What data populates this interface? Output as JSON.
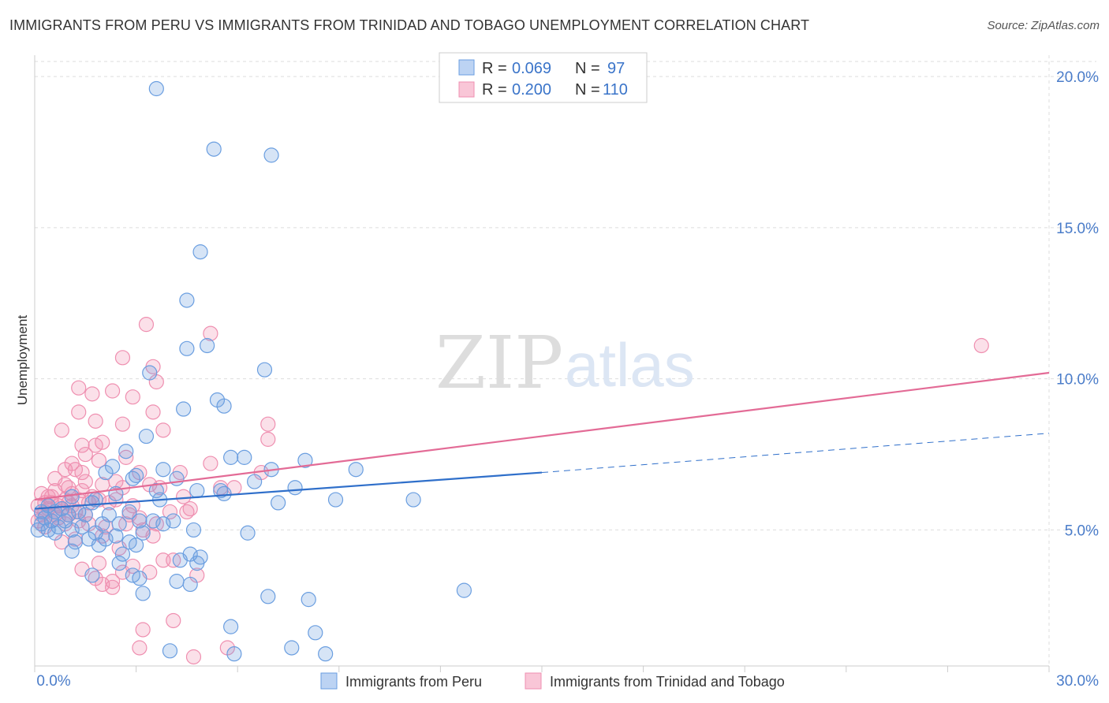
{
  "title": "IMMIGRANTS FROM PERU VS IMMIGRANTS FROM TRINIDAD AND TOBAGO UNEMPLOYMENT CORRELATION CHART",
  "source": "Source: ZipAtlas.com",
  "watermark": {
    "part1": "ZIP",
    "part2": "atlas"
  },
  "legend": {
    "rows": [
      {
        "r_label": "R =",
        "r_value": "0.069",
        "n_label": "N =",
        "n_value": "97"
      },
      {
        "r_label": "R =",
        "r_value": "0.200",
        "n_label": "N =",
        "n_value": "110"
      }
    ]
  },
  "bottom_legend": [
    "Immigrants from Peru",
    "Immigrants from Trinidad and Tobago"
  ],
  "colors": {
    "peru": "#6a9ee0",
    "peru_line": "#2f6fca",
    "tt": "#ef8fb0",
    "tt_line": "#e36b96",
    "grid": "#dddddd",
    "tick_text": "#4a7cc9"
  },
  "chart_data": {
    "type": "scatter",
    "xlabel": "",
    "ylabel": "Unemployment",
    "xlim": [
      0,
      30
    ],
    "ylim": [
      0.5,
      20.5
    ],
    "x_tick_labels": [
      "0.0%",
      "30.0%"
    ],
    "y_ticks": [
      5,
      10,
      15,
      20
    ],
    "y_tick_labels": [
      "5.0%",
      "10.0%",
      "15.0%",
      "20.0%"
    ],
    "grid": true,
    "legend_placement": "top-center",
    "series": [
      {
        "name": "Immigrants from Peru",
        "r": 0.069,
        "n": 97,
        "trend": {
          "x0": 0,
          "y0": 5.7,
          "x1": 15.0,
          "y1": 6.9,
          "dashed_to_x": 30,
          "dashed_to_y": 8.2
        },
        "points": [
          [
            3.6,
            19.6
          ],
          [
            5.3,
            17.6
          ],
          [
            7.0,
            17.4
          ],
          [
            4.9,
            14.2
          ],
          [
            4.5,
            12.6
          ],
          [
            4.5,
            11.0
          ],
          [
            5.1,
            11.1
          ],
          [
            6.8,
            10.3
          ],
          [
            3.4,
            10.2
          ],
          [
            5.4,
            9.3
          ],
          [
            5.6,
            9.1
          ],
          [
            4.4,
            9.0
          ],
          [
            3.3,
            8.1
          ],
          [
            2.7,
            7.6
          ],
          [
            5.8,
            7.4
          ],
          [
            6.2,
            7.4
          ],
          [
            8.0,
            7.3
          ],
          [
            2.3,
            7.1
          ],
          [
            3.8,
            7.0
          ],
          [
            7.0,
            7.0
          ],
          [
            9.5,
            7.0
          ],
          [
            2.1,
            6.9
          ],
          [
            3.0,
            6.8
          ],
          [
            4.2,
            6.7
          ],
          [
            2.9,
            6.7
          ],
          [
            6.5,
            6.6
          ],
          [
            7.7,
            6.4
          ],
          [
            3.6,
            6.3
          ],
          [
            4.8,
            6.3
          ],
          [
            5.5,
            6.3
          ],
          [
            2.4,
            6.2
          ],
          [
            1.1,
            6.1
          ],
          [
            1.8,
            6.0
          ],
          [
            7.2,
            5.9
          ],
          [
            8.9,
            6.0
          ],
          [
            11.2,
            6.0
          ],
          [
            0.4,
            5.8
          ],
          [
            0.8,
            5.7
          ],
          [
            1.3,
            5.6
          ],
          [
            0.6,
            5.6
          ],
          [
            0.2,
            5.6
          ],
          [
            0.3,
            5.4
          ],
          [
            1.0,
            5.5
          ],
          [
            1.5,
            5.5
          ],
          [
            2.8,
            5.6
          ],
          [
            0.5,
            5.3
          ],
          [
            0.9,
            5.3
          ],
          [
            0.2,
            5.2
          ],
          [
            0.7,
            5.1
          ],
          [
            1.4,
            5.1
          ],
          [
            2.0,
            5.2
          ],
          [
            3.1,
            5.3
          ],
          [
            3.5,
            5.3
          ],
          [
            3.8,
            5.2
          ],
          [
            4.1,
            5.3
          ],
          [
            2.5,
            5.2
          ],
          [
            0.4,
            5.0
          ],
          [
            1.1,
            5.0
          ],
          [
            1.8,
            4.9
          ],
          [
            2.4,
            4.8
          ],
          [
            3.2,
            4.9
          ],
          [
            4.7,
            5.0
          ],
          [
            6.3,
            4.9
          ],
          [
            0.1,
            5.0
          ],
          [
            0.6,
            4.9
          ],
          [
            1.6,
            4.7
          ],
          [
            2.1,
            4.7
          ],
          [
            1.2,
            4.6
          ],
          [
            2.8,
            4.6
          ],
          [
            1.9,
            4.5
          ],
          [
            3.0,
            4.5
          ],
          [
            1.1,
            4.3
          ],
          [
            2.6,
            4.2
          ],
          [
            4.6,
            4.2
          ],
          [
            4.9,
            4.1
          ],
          [
            4.3,
            4.0
          ],
          [
            2.5,
            3.9
          ],
          [
            4.8,
            3.9
          ],
          [
            1.7,
            3.5
          ],
          [
            2.9,
            3.5
          ],
          [
            3.1,
            3.4
          ],
          [
            4.2,
            3.3
          ],
          [
            4.6,
            3.2
          ],
          [
            12.7,
            3.0
          ],
          [
            3.2,
            2.9
          ],
          [
            6.9,
            2.8
          ],
          [
            8.1,
            2.7
          ],
          [
            5.8,
            1.8
          ],
          [
            8.3,
            1.6
          ],
          [
            7.6,
            1.1
          ],
          [
            4.0,
            1.0
          ],
          [
            5.9,
            0.9
          ],
          [
            8.6,
            0.9
          ],
          [
            1.7,
            5.9
          ],
          [
            2.2,
            5.5
          ],
          [
            3.7,
            6.0
          ],
          [
            5.6,
            6.2
          ]
        ]
      },
      {
        "name": "Immigrants from Trinidad and Tobago",
        "r": 0.2,
        "n": 110,
        "trend": {
          "x0": 0,
          "y0": 6.0,
          "x1": 30,
          "y1": 10.2
        },
        "points": [
          [
            28.0,
            11.1
          ],
          [
            3.3,
            11.8
          ],
          [
            5.2,
            11.5
          ],
          [
            2.6,
            10.7
          ],
          [
            3.5,
            10.4
          ],
          [
            3.6,
            9.9
          ],
          [
            1.3,
            9.7
          ],
          [
            2.3,
            9.6
          ],
          [
            1.7,
            9.5
          ],
          [
            2.9,
            9.4
          ],
          [
            3.5,
            8.9
          ],
          [
            1.3,
            8.9
          ],
          [
            1.8,
            8.6
          ],
          [
            2.6,
            8.5
          ],
          [
            6.9,
            8.5
          ],
          [
            0.8,
            8.3
          ],
          [
            3.8,
            8.3
          ],
          [
            1.4,
            7.8
          ],
          [
            2.0,
            7.9
          ],
          [
            1.8,
            7.8
          ],
          [
            6.9,
            8.0
          ],
          [
            1.5,
            7.5
          ],
          [
            2.7,
            7.4
          ],
          [
            1.9,
            7.3
          ],
          [
            1.1,
            7.2
          ],
          [
            5.2,
            7.2
          ],
          [
            0.9,
            7.0
          ],
          [
            1.2,
            7.0
          ],
          [
            3.1,
            6.9
          ],
          [
            4.3,
            6.9
          ],
          [
            6.7,
            6.9
          ],
          [
            0.6,
            6.7
          ],
          [
            1.5,
            6.6
          ],
          [
            2.0,
            6.5
          ],
          [
            3.4,
            6.5
          ],
          [
            5.5,
            6.4
          ],
          [
            2.6,
            6.4
          ],
          [
            1.0,
            6.4
          ],
          [
            1.4,
            6.3
          ],
          [
            0.2,
            6.2
          ],
          [
            0.5,
            6.1
          ],
          [
            0.9,
            6.0
          ],
          [
            1.3,
            6.0
          ],
          [
            1.9,
            6.0
          ],
          [
            2.4,
            6.0
          ],
          [
            1.6,
            5.9
          ],
          [
            0.3,
            5.9
          ],
          [
            0.7,
            5.8
          ],
          [
            1.1,
            5.8
          ],
          [
            0.1,
            5.8
          ],
          [
            0.4,
            5.7
          ],
          [
            0.8,
            5.7
          ],
          [
            1.2,
            5.6
          ],
          [
            4.6,
            5.7
          ],
          [
            0.2,
            5.5
          ],
          [
            0.6,
            5.5
          ],
          [
            1.0,
            5.5
          ],
          [
            1.5,
            5.5
          ],
          [
            4.5,
            5.6
          ],
          [
            3.1,
            5.4
          ],
          [
            0.1,
            5.3
          ],
          [
            0.5,
            5.3
          ],
          [
            0.9,
            5.2
          ],
          [
            2.7,
            5.2
          ],
          [
            3.6,
            5.2
          ],
          [
            3.2,
            5.0
          ],
          [
            0.3,
            5.1
          ],
          [
            2.0,
            4.8
          ],
          [
            0.8,
            4.6
          ],
          [
            1.2,
            4.7
          ],
          [
            2.5,
            4.4
          ],
          [
            3.8,
            4.0
          ],
          [
            4.1,
            4.0
          ],
          [
            1.9,
            3.9
          ],
          [
            2.9,
            3.8
          ],
          [
            1.4,
            3.7
          ],
          [
            2.6,
            3.6
          ],
          [
            3.4,
            3.6
          ],
          [
            4.8,
            3.5
          ],
          [
            1.8,
            3.4
          ],
          [
            2.3,
            3.3
          ],
          [
            2.0,
            3.2
          ],
          [
            2.3,
            3.1
          ],
          [
            4.1,
            2.0
          ],
          [
            3.2,
            1.7
          ],
          [
            3.1,
            1.1
          ],
          [
            5.7,
            1.1
          ],
          [
            4.7,
            0.8
          ],
          [
            0.6,
            6.3
          ],
          [
            1.7,
            6.1
          ],
          [
            2.2,
            5.9
          ],
          [
            0.4,
            6.1
          ],
          [
            0.9,
            6.5
          ],
          [
            1.4,
            6.9
          ],
          [
            2.9,
            5.8
          ],
          [
            3.7,
            6.4
          ],
          [
            4.4,
            6.1
          ],
          [
            5.9,
            6.4
          ],
          [
            1.0,
            5.9
          ],
          [
            0.3,
            5.6
          ],
          [
            0.7,
            5.4
          ],
          [
            1.3,
            5.3
          ],
          [
            2.1,
            5.1
          ],
          [
            2.8,
            5.5
          ],
          [
            3.5,
            4.8
          ],
          [
            4.0,
            5.6
          ],
          [
            1.6,
            5.2
          ],
          [
            0.5,
            5.9
          ],
          [
            2.4,
            6.6
          ],
          [
            1.1,
            6.2
          ]
        ]
      }
    ]
  }
}
